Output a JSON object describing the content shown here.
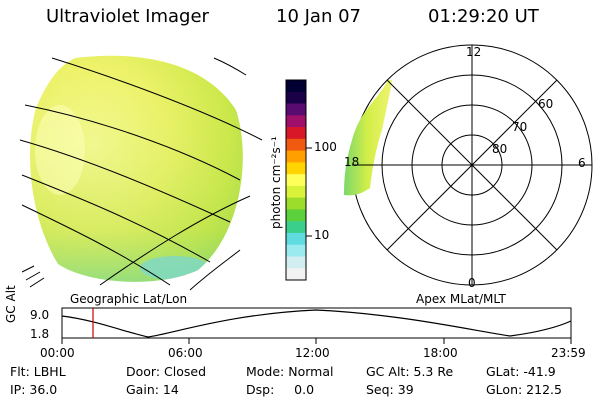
{
  "header": {
    "instrument": "Ultraviolet Imager",
    "date": "10 Jan 07",
    "time": "01:29:20 UT"
  },
  "colorbar": {
    "unit_label": "photon cm⁻²s⁻¹",
    "ticks": [
      "100",
      "10"
    ],
    "colors": [
      "#000033",
      "#1a0047",
      "#5a0b70",
      "#a0106a",
      "#d81828",
      "#f05a10",
      "#ffa000",
      "#ffd400",
      "#ffff5a",
      "#d9f23a",
      "#9cdc2a",
      "#5ccf3c",
      "#3bcf8c",
      "#60dce0",
      "#9aeaf0",
      "#d2eef0",
      "#f2f2f2"
    ]
  },
  "panels": {
    "left_label": "Geographic Lat/Lon",
    "right_label": "Apex MLat/MLT"
  },
  "polar": {
    "mlt_labels": {
      "top": "12",
      "right": "6",
      "bottom": "0",
      "left": "18"
    },
    "lat_labels": [
      "60",
      "70",
      "80"
    ]
  },
  "altitude_plot": {
    "ylabel": "GC Alt",
    "yticks": [
      "9.0",
      "1.8"
    ],
    "xticks": [
      "00:00",
      "06:00",
      "12:00",
      "18:00",
      "23:59"
    ],
    "marker_time": "01:29"
  },
  "info": {
    "row1": [
      "Flt: LBHL",
      "Door: Closed",
      "Mode: Normal",
      "GC Alt: 5.3 Re",
      "GLat: -41.9"
    ],
    "row2": [
      "IP: 36.0",
      "Gain: 14",
      "Dsp:     0.0",
      "Seq: 39",
      "GLon: 212.5"
    ]
  },
  "accents": {
    "disk_fill": "#e6f060",
    "marker_red": "#cc0000"
  }
}
